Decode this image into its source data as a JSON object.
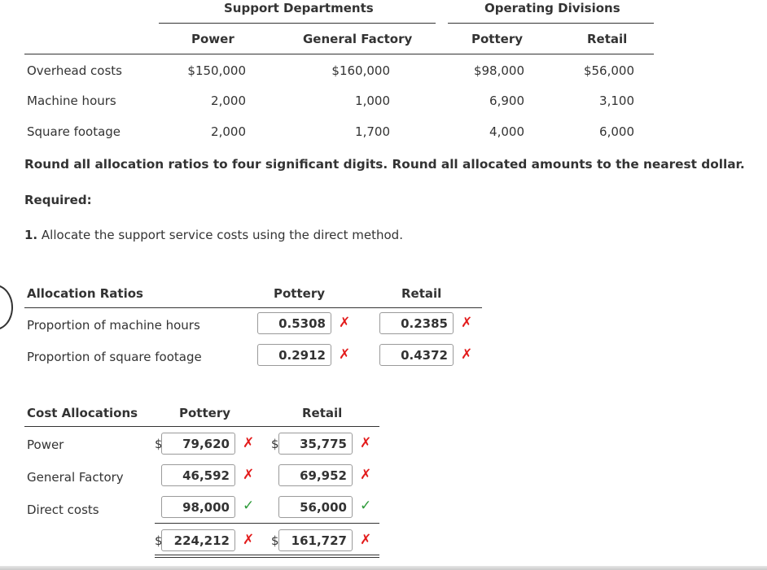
{
  "data_table": {
    "group_headers": {
      "support": "Support Departments",
      "operating": "Operating Divisions"
    },
    "columns": [
      "Power",
      "General Factory",
      "Pottery",
      "Retail"
    ],
    "rows": [
      {
        "label": "Overhead costs",
        "values": [
          "$150,000",
          "$160,000",
          "$98,000",
          "$56,000"
        ]
      },
      {
        "label": "Machine hours",
        "values": [
          "2,000",
          "1,000",
          "6,900",
          "3,100"
        ]
      },
      {
        "label": "Square footage",
        "values": [
          "2,000",
          "1,700",
          "4,000",
          "6,000"
        ]
      }
    ]
  },
  "instructions": {
    "rounding": "Round all allocation ratios to four significant digits. Round all allocated amounts to the nearest dollar.",
    "required_label": "Required:",
    "task_number": "1.",
    "task_text": "Allocate the support service costs using the direct method."
  },
  "ratios": {
    "title": "Allocation Ratios",
    "col_pottery": "Pottery",
    "col_retail": "Retail",
    "rows": [
      {
        "label": "Proportion of machine hours",
        "pottery": "0.5308",
        "pottery_status": "incorrect",
        "retail": "0.2385",
        "retail_status": "incorrect"
      },
      {
        "label": "Proportion of square footage",
        "pottery": "0.2912",
        "pottery_status": "incorrect",
        "retail": "0.4372",
        "retail_status": "incorrect"
      }
    ]
  },
  "allocations": {
    "title": "Cost Allocations",
    "col_pottery": "Pottery",
    "col_retail": "Retail",
    "currency": "$",
    "rows": [
      {
        "label": "Power",
        "pottery": "79,620",
        "pottery_status": "incorrect",
        "retail": "35,775",
        "retail_status": "incorrect"
      },
      {
        "label": "General Factory",
        "pottery": "46,592",
        "pottery_status": "incorrect",
        "retail": "69,952",
        "retail_status": "incorrect"
      },
      {
        "label": "Direct costs",
        "pottery": "98,000",
        "pottery_status": "correct",
        "retail": "56,000",
        "retail_status": "correct"
      }
    ],
    "total": {
      "pottery": "224,212",
      "pottery_status": "incorrect",
      "retail": "161,727",
      "retail_status": "incorrect"
    }
  },
  "marks": {
    "incorrect": "✗",
    "correct": "✓"
  },
  "colors": {
    "incorrect": "#e31b1b",
    "correct": "#2e9b3a",
    "text": "#333333",
    "input_border": "#9a9a9a"
  }
}
